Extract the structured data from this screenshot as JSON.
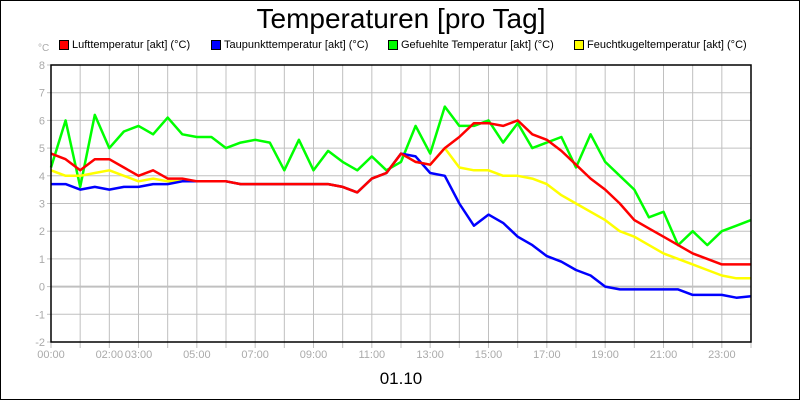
{
  "title": "Temperaturen [pro Tag]",
  "unit": "°C",
  "xlabel": "01.10",
  "legend": [
    {
      "label": "Lufttemperatur [akt] (°C)",
      "color": "#ff0000"
    },
    {
      "label": "Taupunkttemperatur [akt] (°C)",
      "color": "#0000ff"
    },
    {
      "label": "Gefuehlte Temperatur [akt] (°C)",
      "color": "#00ff00"
    },
    {
      "label": "Feuchtkugeltemperatur [akt] (°C)",
      "color": "#ffff00"
    }
  ],
  "chart_data": {
    "type": "line",
    "title": "Temperaturen [pro Tag]",
    "xlabel": "01.10",
    "ylabel": "°C",
    "ylim": [
      -2,
      8
    ],
    "xlim": [
      0,
      24
    ],
    "grid": true,
    "legend_position": "top",
    "y_ticks": [
      -2,
      -1,
      0,
      1,
      2,
      3,
      4,
      5,
      6,
      7,
      8
    ],
    "x_tick_labels": [
      "00:00",
      "02:00",
      "03:00",
      "05:00",
      "07:00",
      "09:00",
      "11:00",
      "13:00",
      "15:00",
      "17:00",
      "19:00",
      "21:00",
      "23:00"
    ],
    "x_tick_positions": [
      0,
      2,
      3,
      5,
      7,
      9,
      11,
      13,
      15,
      17,
      19,
      21,
      23
    ],
    "x": [
      0,
      0.5,
      1,
      1.5,
      2,
      2.5,
      3,
      3.5,
      4,
      4.5,
      5,
      5.5,
      6,
      6.5,
      7,
      7.5,
      8,
      8.5,
      9,
      9.5,
      10,
      10.5,
      11,
      11.5,
      12,
      12.5,
      13,
      13.5,
      14,
      14.5,
      15,
      15.5,
      16,
      16.5,
      17,
      17.5,
      18,
      18.5,
      19,
      19.5,
      20,
      20.5,
      21,
      21.5,
      22,
      22.5,
      23,
      23.5,
      24
    ],
    "series": [
      {
        "name": "Lufttemperatur [akt] (°C)",
        "color": "#ff0000",
        "values": [
          4.8,
          4.6,
          4.2,
          4.6,
          4.6,
          4.3,
          4.0,
          4.2,
          3.9,
          3.9,
          3.8,
          3.8,
          3.8,
          3.7,
          3.7,
          3.7,
          3.7,
          3.7,
          3.7,
          3.7,
          3.6,
          3.4,
          3.9,
          4.1,
          4.8,
          4.5,
          4.4,
          5.0,
          5.4,
          5.9,
          5.9,
          5.8,
          6.0,
          5.5,
          5.3,
          4.9,
          4.4,
          3.9,
          3.5,
          3.0,
          2.4,
          2.1,
          1.8,
          1.5,
          1.2,
          1.0,
          0.8,
          0.8,
          0.8
        ]
      },
      {
        "name": "Taupunkttemperatur [akt] (°C)",
        "color": "#0000ff",
        "values": [
          3.7,
          3.7,
          3.5,
          3.6,
          3.5,
          3.6,
          3.6,
          3.7,
          3.7,
          3.8,
          3.8,
          3.8,
          3.8,
          3.7,
          3.7,
          3.7,
          3.7,
          3.7,
          3.7,
          3.7,
          3.6,
          3.4,
          3.9,
          4.1,
          4.8,
          4.7,
          4.1,
          4.0,
          3.0,
          2.2,
          2.6,
          2.3,
          1.8,
          1.5,
          1.1,
          0.9,
          0.6,
          0.4,
          0.0,
          -0.1,
          -0.1,
          -0.1,
          -0.1,
          -0.1,
          -0.3,
          -0.3,
          -0.3,
          -0.4,
          -0.35
        ]
      },
      {
        "name": "Gefuehlte Temperatur [akt] (°C)",
        "color": "#00ff00",
        "values": [
          4.3,
          6.0,
          3.6,
          6.2,
          5.0,
          5.6,
          5.8,
          5.5,
          6.1,
          5.5,
          5.4,
          5.4,
          5.0,
          5.2,
          5.3,
          5.2,
          4.2,
          5.3,
          4.2,
          4.9,
          4.5,
          4.2,
          4.7,
          4.2,
          4.5,
          5.8,
          4.8,
          6.5,
          5.8,
          5.8,
          6.0,
          5.2,
          5.9,
          5.0,
          5.2,
          5.4,
          4.3,
          5.5,
          4.5,
          4.0,
          3.5,
          2.5,
          2.7,
          1.5,
          2.0,
          1.5,
          2.0,
          2.2,
          2.4
        ]
      },
      {
        "name": "Feuchtkugeltemperatur [akt] (°C)",
        "color": "#ffff00",
        "values": [
          4.2,
          4.0,
          4.0,
          4.1,
          4.2,
          4.0,
          3.8,
          3.9,
          3.8,
          3.8,
          3.8,
          3.8,
          3.8,
          3.7,
          3.7,
          3.7,
          3.7,
          3.7,
          3.7,
          3.7,
          3.6,
          3.4,
          3.9,
          4.1,
          4.8,
          4.5,
          4.4,
          5.0,
          4.3,
          4.2,
          4.2,
          4.0,
          4.0,
          3.9,
          3.7,
          3.3,
          3.0,
          2.7,
          2.4,
          2.0,
          1.8,
          1.5,
          1.2,
          1.0,
          0.8,
          0.6,
          0.4,
          0.3,
          0.3
        ]
      }
    ]
  }
}
